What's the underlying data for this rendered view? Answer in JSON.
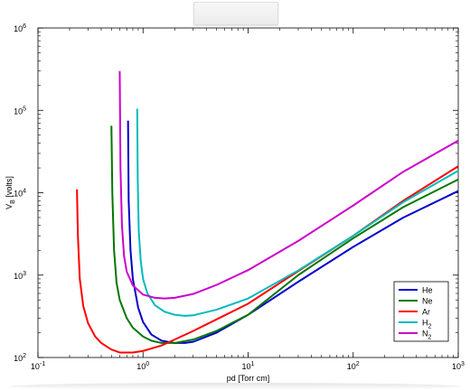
{
  "chart_data": {
    "type": "line",
    "title": "",
    "xlabel": "pd [Torr cm]",
    "ylabel": "V_B [volts]",
    "xscale": "log",
    "yscale": "log",
    "xlim": [
      0.1,
      1000
    ],
    "ylim": [
      100,
      1000000
    ],
    "grid": false,
    "legend_position": "bottom-right",
    "x_ticks": [
      {
        "value": 0.1,
        "base": "10",
        "exp": "-1"
      },
      {
        "value": 1,
        "base": "10",
        "exp": "0"
      },
      {
        "value": 10,
        "base": "10",
        "exp": "1"
      },
      {
        "value": 100,
        "base": "10",
        "exp": "2"
      },
      {
        "value": 1000,
        "base": "10",
        "exp": "3"
      }
    ],
    "y_ticks": [
      {
        "value": 100,
        "base": "10",
        "exp": "2"
      },
      {
        "value": 1000,
        "base": "10",
        "exp": "3"
      },
      {
        "value": 10000,
        "base": "10",
        "exp": "4"
      },
      {
        "value": 100000,
        "base": "10",
        "exp": "5"
      },
      {
        "value": 1000000,
        "base": "10",
        "exp": "6"
      }
    ],
    "series": [
      {
        "name": "He",
        "name_base": "He",
        "name_sub": "",
        "color": "#0000cc",
        "x": [
          0.72,
          0.73,
          0.76,
          0.8,
          0.9,
          1.0,
          1.2,
          1.5,
          2.0,
          2.5,
          3,
          5,
          10,
          30,
          100,
          300,
          1000
        ],
        "y": [
          75000,
          8000,
          2000,
          900,
          400,
          270,
          190,
          160,
          150,
          150,
          155,
          200,
          330,
          830,
          2200,
          5000,
          10500
        ]
      },
      {
        "name": "Ne",
        "name_base": "Ne",
        "name_sub": "",
        "color": "#007700",
        "x": [
          0.5,
          0.51,
          0.53,
          0.56,
          0.6,
          0.7,
          0.8,
          1.0,
          1.2,
          1.5,
          2,
          3,
          5,
          10,
          30,
          100,
          300,
          1000
        ],
        "y": [
          65000,
          10000,
          2000,
          800,
          500,
          300,
          230,
          180,
          160,
          150,
          150,
          165,
          210,
          330,
          1000,
          2800,
          6700,
          14500
        ]
      },
      {
        "name": "Ar",
        "name_base": "Ar",
        "name_sub": "",
        "color": "#ff0000",
        "x": [
          0.235,
          0.24,
          0.25,
          0.27,
          0.3,
          0.35,
          0.4,
          0.5,
          0.6,
          0.8,
          1.0,
          1.5,
          2,
          3,
          5,
          10,
          30,
          100,
          300,
          1000
        ],
        "y": [
          11000,
          3000,
          900,
          420,
          260,
          180,
          150,
          125,
          115,
          115,
          120,
          140,
          165,
          210,
          290,
          450,
          1120,
          3000,
          8000,
          21000
        ]
      },
      {
        "name": "H2",
        "name_base": "H",
        "name_sub": "2",
        "color": "#00bbbb",
        "x": [
          0.88,
          0.89,
          0.91,
          0.95,
          1.0,
          1.1,
          1.3,
          1.6,
          2.0,
          2.5,
          3,
          5,
          10,
          30,
          100,
          300,
          1000
        ],
        "y": [
          105000,
          15000,
          3500,
          1500,
          900,
          600,
          430,
          360,
          330,
          320,
          325,
          380,
          520,
          1140,
          3000,
          7700,
          18500
        ]
      },
      {
        "name": "N2",
        "name_base": "N",
        "name_sub": "2",
        "color": "#cc00cc",
        "x": [
          0.6,
          0.61,
          0.63,
          0.66,
          0.7,
          0.8,
          1.0,
          1.3,
          1.6,
          2.0,
          3,
          5,
          10,
          30,
          100,
          300,
          1000
        ],
        "y": [
          300000,
          20000,
          4000,
          1700,
          1100,
          750,
          580,
          530,
          520,
          530,
          590,
          760,
          1150,
          2600,
          7000,
          18000,
          43000
        ]
      }
    ]
  }
}
